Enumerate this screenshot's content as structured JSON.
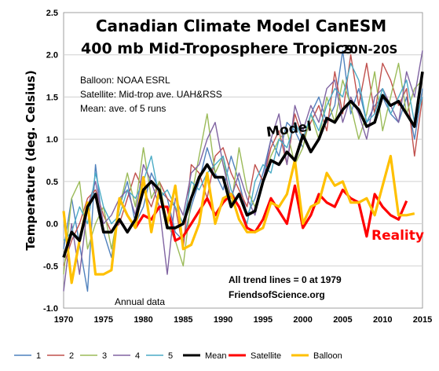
{
  "chart_data": {
    "type": "line",
    "title_line1": "Canadian Climate Model CanESM",
    "title_line2": "400 mb Mid-Troposphere Tropics",
    "title_region": "20N-20S",
    "ylabel": "Temperature (deg. Celsius)",
    "xlabel": "",
    "xlim": [
      1970,
      2015
    ],
    "ylim": [
      -1.0,
      2.5
    ],
    "xticks": [
      "1970",
      "1975",
      "1980",
      "1985",
      "1990",
      "1995",
      "2000",
      "2005",
      "2010",
      "2015"
    ],
    "yticks": [
      "2.5",
      "2.0",
      "1.5",
      "1.0",
      "0.5",
      "0.0",
      "-0.5",
      "-1.0"
    ],
    "grid": "horizontal",
    "legend_position": "bottom",
    "notes": [
      "Balloon: NOAA ESRL",
      "Satellite: Mid-trop ave. UAH&RSS",
      "Mean: ave. of 5 runs"
    ],
    "annotations": {
      "model": "Model",
      "reality": "Reality",
      "trend_line1": "All trend lines = 0 at 1979",
      "trend_line2": "FriendsofScience.org",
      "annual": "Annual data"
    },
    "series": [
      {
        "name": "1",
        "color": "#4f81bd",
        "x_start": 1970,
        "values": [
          -0.3,
          0.3,
          -0.25,
          -0.8,
          0.7,
          -0.1,
          -0.4,
          0.2,
          0.5,
          0.0,
          0.2,
          0.6,
          0.4,
          0.3,
          -0.1,
          -0.2,
          0.2,
          0.5,
          0.9,
          0.6,
          0.4,
          0.8,
          0.5,
          0.1,
          0.3,
          0.6,
          1.0,
          0.8,
          1.2,
          1.1,
          0.9,
          1.3,
          1.5,
          1.2,
          1.4,
          2.05,
          1.3,
          1.6,
          1.2,
          1.4,
          1.5,
          1.3,
          1.2,
          1.5,
          1.0,
          1.6
        ]
      },
      {
        "name": "2",
        "color": "#c0504d",
        "x_start": 1970,
        "values": [
          -0.5,
          -0.2,
          0.0,
          0.3,
          0.4,
          0.1,
          -0.1,
          0.0,
          0.3,
          0.6,
          0.4,
          0.2,
          0.5,
          0.3,
          0.2,
          -0.3,
          0.7,
          0.6,
          0.3,
          0.8,
          0.9,
          0.6,
          0.4,
          0.2,
          0.7,
          0.5,
          0.9,
          1.1,
          0.7,
          1.3,
          1.0,
          1.2,
          1.4,
          1.1,
          1.8,
          1.3,
          2.0,
          1.4,
          1.9,
          1.3,
          1.9,
          1.7,
          1.4,
          1.6,
          0.8,
          1.5
        ]
      },
      {
        "name": "3",
        "color": "#9bbb59",
        "x_start": 1970,
        "values": [
          -0.6,
          0.3,
          0.5,
          -0.3,
          0.0,
          0.2,
          -0.3,
          0.2,
          0.6,
          0.2,
          0.9,
          0.3,
          0.5,
          0.0,
          -0.2,
          -0.5,
          0.3,
          0.8,
          1.3,
          0.6,
          0.8,
          0.2,
          0.9,
          0.4,
          0.2,
          0.5,
          0.8,
          1.0,
          1.1,
          0.7,
          0.9,
          1.3,
          1.0,
          1.5,
          1.2,
          1.7,
          1.4,
          1.0,
          1.3,
          1.8,
          1.1,
          1.5,
          1.9,
          1.3,
          1.6,
          1.7
        ]
      },
      {
        "name": "4",
        "color": "#8064a2",
        "x_start": 1970,
        "values": [
          -0.8,
          0.0,
          -0.6,
          0.2,
          0.5,
          0.0,
          0.1,
          0.3,
          0.4,
          0.1,
          0.7,
          0.5,
          0.2,
          -0.6,
          0.3,
          0.1,
          0.6,
          0.7,
          1.0,
          1.2,
          0.7,
          0.3,
          0.6,
          0.3,
          0.1,
          0.5,
          1.0,
          1.3,
          0.7,
          1.4,
          1.1,
          1.4,
          1.2,
          1.6,
          1.7,
          1.2,
          1.5,
          1.3,
          1.0,
          1.5,
          1.6,
          1.4,
          1.2,
          1.8,
          1.5,
          2.05
        ]
      },
      {
        "name": "5",
        "color": "#4bacc6",
        "x_start": 1970,
        "values": [
          -0.2,
          -0.1,
          0.2,
          0.0,
          0.6,
          0.2,
          0.0,
          0.1,
          0.4,
          0.3,
          0.5,
          0.8,
          0.3,
          0.4,
          0.2,
          0.0,
          0.5,
          0.4,
          0.6,
          0.7,
          0.8,
          0.4,
          0.2,
          0.0,
          0.5,
          0.7,
          0.6,
          1.0,
          0.9,
          1.2,
          1.0,
          1.3,
          1.1,
          1.4,
          1.6,
          1.5,
          1.9,
          1.7,
          1.2,
          1.3,
          1.6,
          1.3,
          1.5,
          1.7,
          1.2,
          1.5
        ]
      },
      {
        "name": "Mean",
        "color": "#000000",
        "x_start": 1970,
        "values": [
          -0.4,
          -0.1,
          -0.2,
          0.2,
          0.35,
          -0.1,
          -0.1,
          0.05,
          -0.1,
          0.05,
          0.4,
          0.5,
          0.4,
          -0.05,
          -0.05,
          0.0,
          0.3,
          0.55,
          0.7,
          0.55,
          0.55,
          0.2,
          0.35,
          0.1,
          0.15,
          0.5,
          0.75,
          0.7,
          0.85,
          0.75,
          1.05,
          0.85,
          1.0,
          1.25,
          1.2,
          1.35,
          1.45,
          1.35,
          1.15,
          1.2,
          1.52,
          1.4,
          1.45,
          1.3,
          1.15,
          1.8
        ]
      },
      {
        "name": "Satellite",
        "color": "#ff0000",
        "x_start": 1979,
        "values": [
          -0.05,
          0.1,
          0.05,
          0.2,
          0.2,
          -0.2,
          -0.15,
          0.0,
          0.15,
          0.3,
          0.1,
          0.25,
          0.35,
          0.2,
          -0.05,
          -0.1,
          0.05,
          0.3,
          0.15,
          0.0,
          0.45,
          -0.05,
          0.1,
          0.35,
          0.25,
          0.2,
          0.4,
          0.3,
          0.25,
          -0.15,
          0.35,
          0.2,
          0.1,
          0.05,
          0.27
        ]
      },
      {
        "name": "Balloon",
        "color": "#ffc000",
        "x_start": 1970,
        "values": [
          0.15,
          -0.7,
          -0.2,
          0.25,
          -0.6,
          -0.6,
          -0.55,
          0.3,
          0.1,
          -0.05,
          0.55,
          -0.1,
          0.4,
          0.0,
          0.45,
          -0.3,
          -0.25,
          0.0,
          0.6,
          0.0,
          0.3,
          0.35,
          0.05,
          -0.1,
          -0.1,
          -0.05,
          0.25,
          0.2,
          0.35,
          0.75,
          0.0,
          0.2,
          0.25,
          0.6,
          0.45,
          0.5,
          0.25,
          0.25,
          0.3,
          0.1,
          0.45,
          0.8,
          0.1,
          0.1,
          0.12
        ]
      }
    ]
  }
}
